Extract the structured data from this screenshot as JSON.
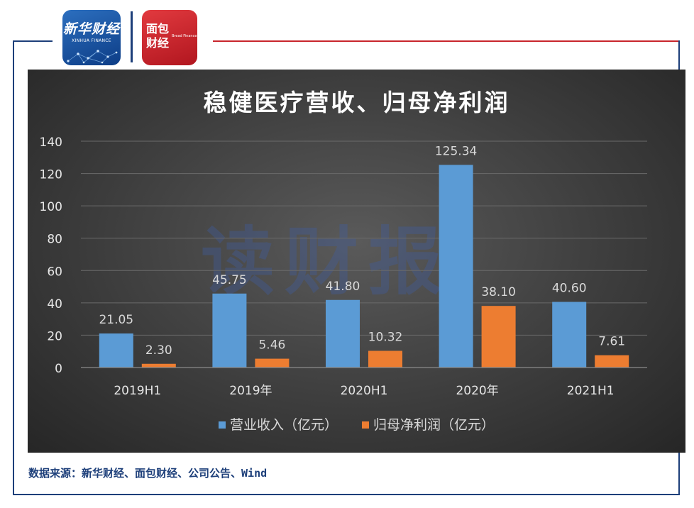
{
  "branding": {
    "logo1_name": "新华财经",
    "logo1_sub": "XINHUA FINANCE",
    "logo2_name": "面包财经",
    "logo2_sub": "Bread Finance"
  },
  "watermark": "读财报",
  "source": "数据来源：新华财经、面包财经、公司公告、Wind",
  "colors": {
    "revenue": "#5b9bd5",
    "profit": "#ed7d31",
    "frame": "#1d3f7a",
    "accent_red": "#c8252c"
  },
  "chart_data": {
    "type": "bar",
    "title": "稳健医疗营收、归母净利润",
    "categories": [
      "2019H1",
      "2019年",
      "2020H1",
      "2020年",
      "2021H1"
    ],
    "series": [
      {
        "name": "营业收入（亿元）",
        "values": [
          21.05,
          45.75,
          41.8,
          125.34,
          40.6
        ],
        "labels": [
          "21.05",
          "45.75",
          "41.80",
          "125.34",
          "40.60"
        ]
      },
      {
        "name": "归母净利润（亿元）",
        "values": [
          2.3,
          5.46,
          10.32,
          38.1,
          7.61
        ],
        "labels": [
          "2.30",
          "5.46",
          "10.32",
          "38.10",
          "7.61"
        ]
      }
    ],
    "ylim": [
      0,
      140
    ],
    "yticks": [
      0,
      20,
      40,
      60,
      80,
      100,
      120,
      140
    ],
    "grid": true,
    "legend_position": "bottom"
  }
}
